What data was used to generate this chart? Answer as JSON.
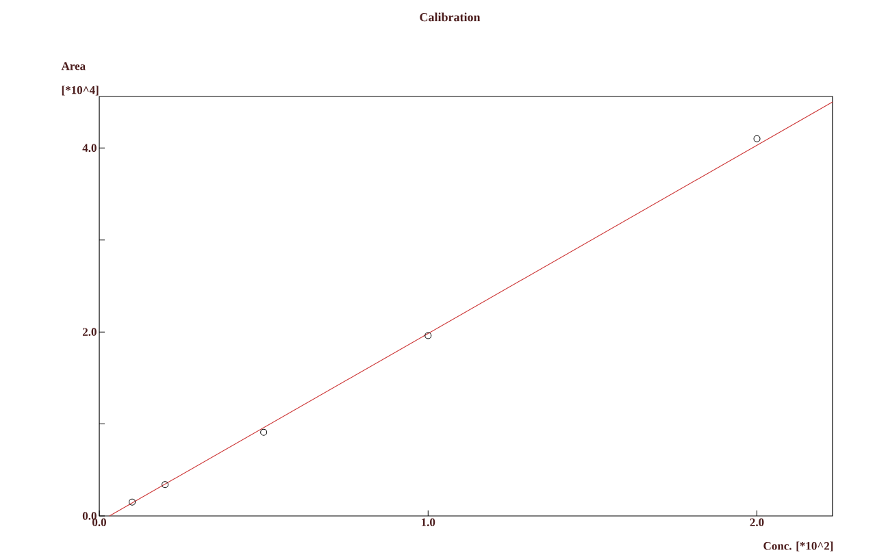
{
  "chart_data": {
    "type": "scatter",
    "title": "Calibration",
    "xlabel": "Conc. [*10^2]",
    "ylabel": "Area [*10^4]",
    "xlim": [
      0,
      2.23
    ],
    "ylim": [
      0,
      4.56
    ],
    "xticks": [
      {
        "value": 0,
        "label": "0.0"
      },
      {
        "value": 1,
        "label": "1.0"
      },
      {
        "value": 2,
        "label": "2.0"
      }
    ],
    "yticks": [
      {
        "value": 0,
        "label": "0.0"
      },
      {
        "value": 1,
        "label": null
      },
      {
        "value": 2,
        "label": "2.0"
      },
      {
        "value": 3,
        "label": null
      },
      {
        "value": 4,
        "label": "4.0"
      }
    ],
    "grid": false,
    "series": [
      {
        "color": "#000000",
        "marker": "circle",
        "x": [
          0.1,
          0.2,
          0.5,
          1.0,
          2.0
        ],
        "values": [
          0.15,
          0.34,
          0.91,
          1.96,
          4.1
        ]
      },
      {
        "type": "line",
        "color": "#cc3333",
        "marker": "none",
        "x": [
          0.031,
          2.23
        ],
        "values": [
          0,
          4.5
        ]
      }
    ]
  }
}
